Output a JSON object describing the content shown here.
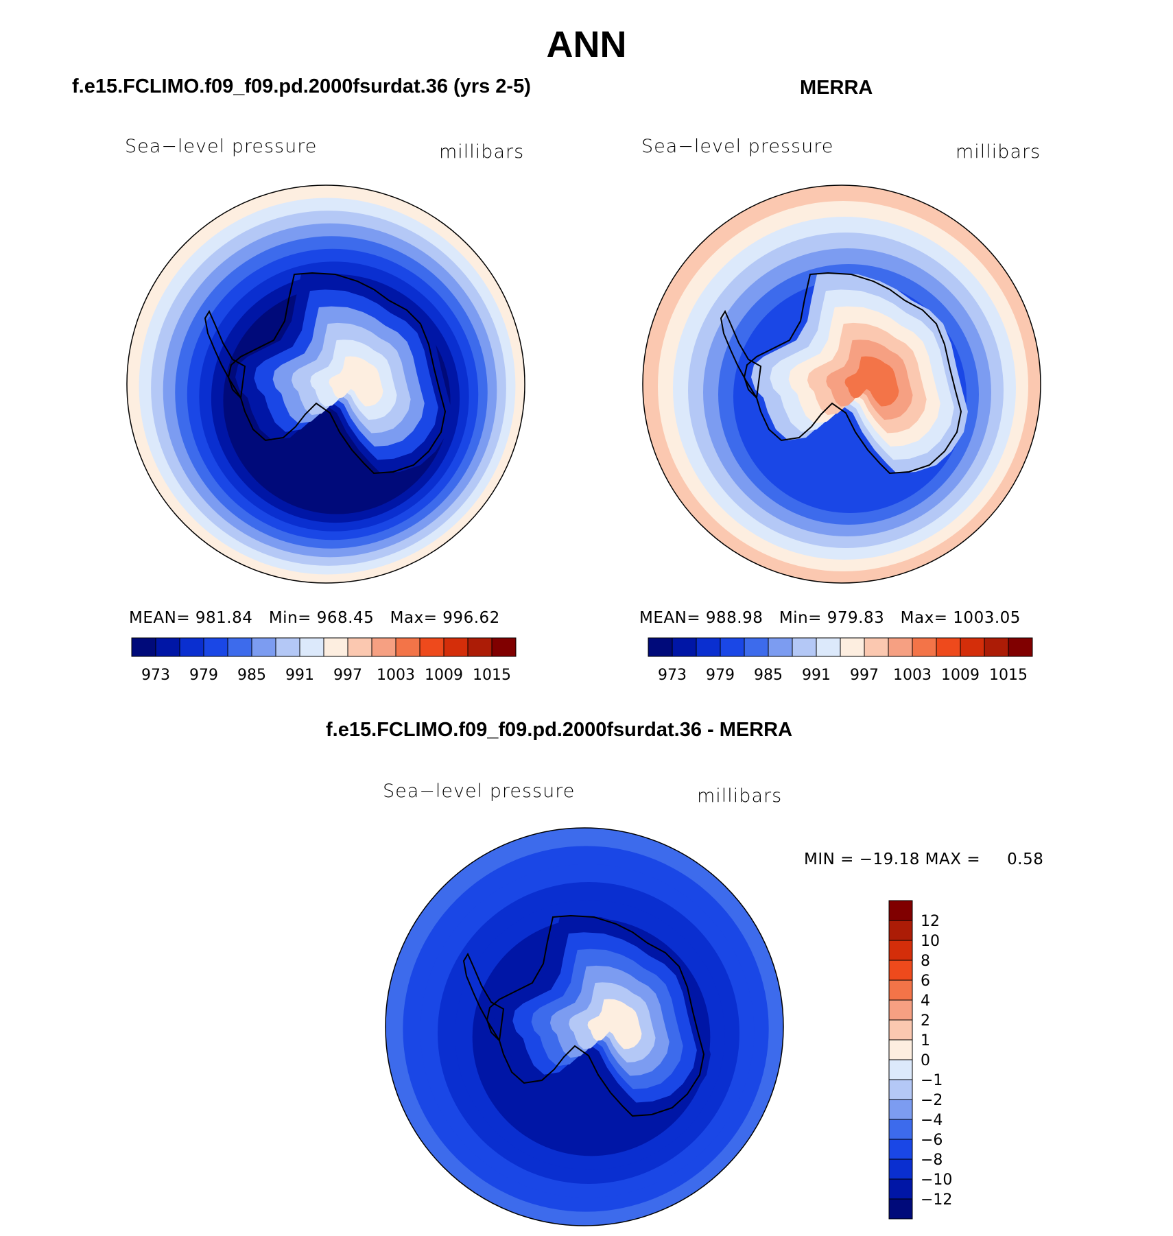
{
  "page_title": "ANN",
  "colors": {
    "palette": [
      "#000a7a",
      "#0016a6",
      "#0a2fd0",
      "#1a47e6",
      "#3d6bec",
      "#7c9cf1",
      "#b4c8f6",
      "#dce9fb",
      "#fdeee0",
      "#fbc8b0",
      "#f6a082",
      "#f37448",
      "#ee4a1c",
      "#d42e0a",
      "#ac1c06",
      "#800000"
    ],
    "coast": "#000000"
  },
  "panels": [
    {
      "id": "model",
      "title": "f.e15.FCLIMO.f09_f09.pd.2000fsurdat.36 (yrs 2-5)",
      "variable": "Sea−level pressure",
      "units": "millibars",
      "stats": {
        "mean_label": "MEAN=",
        "mean": "981.84",
        "min_label": "Min=",
        "min": "968.45",
        "max_label": "Max=",
        "max": "996.62"
      },
      "bands": [
        "#fdeee0",
        "#dce9fb",
        "#b4c8f6",
        "#7c9cf1",
        "#3d6bec",
        "#1a47e6",
        "#0a2fd0",
        "#0016a6",
        "#000a7a"
      ],
      "ant": [
        "#0016a6",
        "#1a47e6",
        "#7c9cf1",
        "#b4c8f6",
        "#dce9fb",
        "#fdeee0"
      ]
    },
    {
      "id": "obs",
      "title": "MERRA",
      "variable": "Sea−level pressure",
      "units": "millibars",
      "stats": {
        "mean_label": "MEAN=",
        "mean": "988.98",
        "min_label": "Min=",
        "min": "979.83",
        "max_label": "Max=",
        "max": "1003.05"
      },
      "bands": [
        "#fbc8b0",
        "#fdeee0",
        "#dce9fb",
        "#b4c8f6",
        "#7c9cf1",
        "#3d6bec",
        "#1a47e6"
      ],
      "ant": [
        "#b4c8f6",
        "#dce9fb",
        "#fdeee0",
        "#fbc8b0",
        "#f6a082",
        "#f37448"
      ]
    }
  ],
  "colorbar_labels": [
    "973",
    "979",
    "985",
    "991",
    "997",
    "1003",
    "1009",
    "1015"
  ],
  "diff": {
    "title": "f.e15.FCLIMO.f09_f09.pd.2000fsurdat.36 - MERRA",
    "variable": "Sea−level pressure",
    "units": "millibars",
    "stats": {
      "min_label": "MIN =",
      "min": "−19.18",
      "max_label": "MAX =",
      "max": "0.58"
    },
    "colorbar_labels": [
      "12",
      "10",
      "8",
      "6",
      "4",
      "2",
      "1",
      "0",
      "−1",
      "−2",
      "−4",
      "−6",
      "−8",
      "−10",
      "−12"
    ],
    "colorbar_colors": [
      "#800000",
      "#ac1c06",
      "#d42e0a",
      "#ee4a1c",
      "#f37448",
      "#f6a082",
      "#fbc8b0",
      "#fdeee0",
      "#dce9fb",
      "#b4c8f6",
      "#7c9cf1",
      "#3d6bec",
      "#1a47e6",
      "#0a2fd0",
      "#0016a6",
      "#000a7a"
    ],
    "bands": [
      "#3d6bec",
      "#1a47e6",
      "#1a47e6",
      "#0a2fd0",
      "#0a2fd0",
      "#0016a6"
    ],
    "ant": [
      "#0016a6",
      "#1a47e6",
      "#3d6bec",
      "#7c9cf1",
      "#b4c8f6",
      "#fdeee0"
    ]
  }
}
